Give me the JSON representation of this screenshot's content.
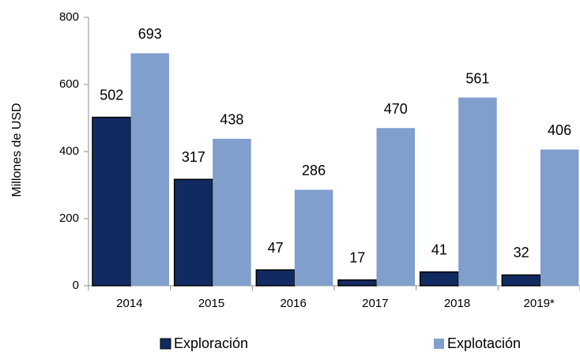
{
  "chart_data": {
    "type": "bar",
    "categories": [
      "2014",
      "2015",
      "2016",
      "2017",
      "2018",
      "2019*"
    ],
    "series": [
      {
        "name": "Exploración",
        "color": "#112b62",
        "values": [
          502,
          317,
          47,
          17,
          41,
          32
        ]
      },
      {
        "name": "Explotación",
        "color": "#819fcd",
        "values": [
          693,
          438,
          286,
          470,
          561,
          406
        ]
      }
    ],
    "y_label": "Millones de USD",
    "ylim": [
      0,
      800
    ],
    "yticks": [
      0,
      200,
      400,
      600,
      800
    ],
    "grid": false,
    "legend": "bottom"
  }
}
